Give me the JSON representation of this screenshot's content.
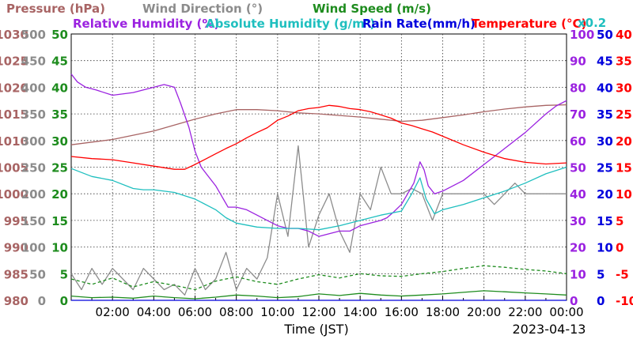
{
  "chart_data": {
    "type": "line",
    "date": "2023-04-13",
    "xlabel": "Time (JST)",
    "x_ticks": [
      "02:00",
      "04:00",
      "06:00",
      "08:00",
      "10:00",
      "12:00",
      "14:00",
      "16:00",
      "18:00",
      "20:00",
      "22:00",
      "00:00"
    ],
    "grid": true,
    "legend": [
      {
        "name": "Pressure (hPa)",
        "color": "#a86464"
      },
      {
        "name": "Wind Direction (°)",
        "color": "#8c8c8c"
      },
      {
        "name": "Wind Speed (m/s)",
        "color": "#1e8c1e"
      },
      {
        "name": "Relative Humidity (%)",
        "color": "#9b22e0"
      },
      {
        "name": "Absolute Humidity (g/m³)",
        "color": "#1fbfbf"
      },
      {
        "name": "Rain Rate(mm/h)",
        "color": "#0000dd"
      },
      {
        "name": "Temperature (°C)",
        "color": "#ff0000"
      }
    ],
    "abs_humidity_scale_note": "x0.2",
    "axes": {
      "pressure": {
        "ticks": [
          "980",
          "985",
          "990",
          "995",
          "1000",
          "1005",
          "1010",
          "1015",
          "1020",
          "1025",
          "1030"
        ],
        "ylim": [
          980,
          1030
        ],
        "color": "#a86464"
      },
      "wind_direction": {
        "ticks": [
          "0",
          "50",
          "100",
          "150",
          "200",
          "250",
          "300",
          "350",
          "400",
          "450",
          "500"
        ],
        "ylim": [
          0,
          500
        ],
        "color": "#8c8c8c"
      },
      "wind_speed": {
        "ticks": [
          "0",
          "5",
          "10",
          "15",
          "20",
          "25",
          "30",
          "35",
          "40",
          "45",
          "50"
        ],
        "ylim": [
          0,
          50
        ],
        "color": "#1e8c1e"
      },
      "relative_humidity": {
        "ticks": [
          "0",
          "10",
          "20",
          "30",
          "40",
          "50",
          "60",
          "70",
          "80",
          "90",
          "100"
        ],
        "ylim": [
          0,
          100
        ],
        "color": "#9b22e0"
      },
      "rain_rate": {
        "ticks": [
          "0",
          "5",
          "10",
          "15",
          "20",
          "25",
          "30",
          "35",
          "40",
          "45",
          "50"
        ],
        "ylim": [
          0,
          50
        ],
        "color": "#0000dd"
      },
      "temperature": {
        "ticks": [
          "-10",
          "-5",
          "0",
          "5",
          "10",
          "15",
          "20",
          "25",
          "30",
          "35",
          "40"
        ],
        "ylim": [
          -10,
          40
        ],
        "color": "#ff0000"
      }
    },
    "x_range_hours": [
      0,
      24
    ],
    "series": [
      {
        "name": "Pressure (hPa)",
        "axis": "pressure",
        "color": "#a86464",
        "x": [
          0,
          2,
          4,
          5,
          6,
          7,
          8,
          9,
          10,
          11,
          12,
          13,
          14,
          15,
          16,
          17,
          18,
          19,
          20,
          21,
          22,
          23,
          24
        ],
        "y": [
          1009.2,
          1010.2,
          1011.8,
          1012.9,
          1014.0,
          1015.0,
          1015.8,
          1015.8,
          1015.6,
          1015.2,
          1015.0,
          1014.7,
          1014.4,
          1014.0,
          1013.6,
          1013.8,
          1014.3,
          1014.8,
          1015.4,
          1015.9,
          1016.3,
          1016.6,
          1016.7
        ]
      },
      {
        "name": "Wind Direction (°)",
        "axis": "wind_direction",
        "color": "#8c8c8c",
        "x": [
          0,
          0.5,
          1,
          1.5,
          2,
          2.5,
          3,
          3.5,
          4,
          4.5,
          5,
          5.5,
          6,
          6.5,
          7,
          7.5,
          8,
          8.5,
          9,
          9.5,
          10,
          10.5,
          11,
          11.5,
          12,
          12.5,
          13,
          13.5,
          14,
          14.5,
          15,
          15.5,
          16,
          16.5,
          17,
          17.5,
          18,
          18.5,
          19,
          19.5,
          20,
          20.5,
          21,
          21.5,
          22,
          22.5,
          23,
          23.5,
          24
        ],
        "y": [
          50,
          20,
          60,
          30,
          60,
          40,
          20,
          60,
          40,
          20,
          30,
          10,
          60,
          20,
          40,
          90,
          20,
          60,
          40,
          80,
          200,
          120,
          290,
          100,
          160,
          200,
          130,
          90,
          200,
          170,
          250,
          200,
          200,
          210,
          200,
          150,
          200,
          200,
          200,
          200,
          200,
          180,
          200,
          220,
          200,
          200,
          200,
          200,
          200
        ]
      },
      {
        "name": "Wind Speed (m/s) avg",
        "axis": "wind_speed",
        "color": "#1e8c1e",
        "x": [
          0,
          1,
          2,
          3,
          4,
          5,
          6,
          7,
          8,
          9,
          10,
          11,
          12,
          13,
          14,
          15,
          16,
          17,
          18,
          19,
          20,
          21,
          22,
          23,
          24
        ],
        "y": [
          0.8,
          0.5,
          0.6,
          0.4,
          0.8,
          0.5,
          0.3,
          0.6,
          1.0,
          0.8,
          0.5,
          0.7,
          1.2,
          0.9,
          1.3,
          1.0,
          0.8,
          1.0,
          1.2,
          1.5,
          1.8,
          1.6,
          1.4,
          1.2,
          1.0
        ]
      },
      {
        "name": "Wind Speed (m/s) gust",
        "axis": "wind_speed",
        "color": "#1e8c1e",
        "dashed": true,
        "x": [
          0,
          1,
          2,
          3,
          4,
          5,
          6,
          7,
          8,
          9,
          10,
          11,
          12,
          13,
          14,
          15,
          16,
          17,
          18,
          19,
          20,
          21,
          22,
          23,
          24
        ],
        "y": [
          4.0,
          3.0,
          4.2,
          2.5,
          3.5,
          2.8,
          2.0,
          3.6,
          4.4,
          3.5,
          3.0,
          4.0,
          4.8,
          4.2,
          5.0,
          4.6,
          4.5,
          5.0,
          5.4,
          6.0,
          6.5,
          6.2,
          5.8,
          5.5,
          5.0
        ]
      },
      {
        "name": "Relative Humidity (%)",
        "axis": "relative_humidity",
        "color": "#9b22e0",
        "x": [
          0,
          0.3,
          0.7,
          1.2,
          2,
          3,
          4,
          4.5,
          5,
          5.3,
          5.7,
          6,
          6.3,
          6.6,
          7,
          7.3,
          7.6,
          8,
          8.5,
          9,
          9.5,
          10,
          10.5,
          11,
          11.5,
          12,
          12.5,
          13,
          13.5,
          14,
          14.5,
          15,
          15.3,
          15.6,
          16,
          16.3,
          16.6,
          16.9,
          17.1,
          17.3,
          17.6,
          18,
          19,
          20,
          21,
          22,
          23,
          23.5,
          24
        ],
        "y": [
          85,
          82,
          80,
          79,
          77,
          78,
          80,
          81,
          80,
          74,
          65,
          56,
          50,
          47,
          43,
          39,
          35,
          35,
          34,
          32,
          30,
          28,
          27,
          27,
          26,
          24,
          25,
          26,
          26,
          28,
          29,
          30,
          31,
          33,
          36,
          40,
          44,
          52,
          49,
          43,
          40,
          41,
          45,
          51,
          57,
          63,
          70,
          73,
          75
        ]
      },
      {
        "name": "Absolute Humidity (g/m³)",
        "axis": "relative_humidity",
        "color": "#1fbfbf",
        "x": [
          0,
          1,
          2,
          3,
          3.5,
          4,
          5,
          6,
          7,
          7.5,
          8,
          9,
          10,
          11,
          12,
          13,
          14,
          15,
          16,
          16.5,
          16.9,
          17.2,
          17.6,
          18,
          19,
          20,
          21,
          22,
          23,
          24
        ],
        "y": [
          49.5,
          46.5,
          45,
          42,
          41.5,
          41.5,
          40.5,
          38,
          34,
          31,
          29,
          27.5,
          27,
          27,
          26.5,
          28,
          30,
          32,
          33.5,
          40,
          46,
          38,
          32.5,
          34,
          36,
          38.5,
          41,
          44,
          47.5,
          50
        ]
      },
      {
        "name": "Rain Rate(mm/h)",
        "axis": "rain_rate",
        "color": "#0000dd",
        "x": [
          0,
          24
        ],
        "y": [
          0,
          0
        ]
      },
      {
        "name": "Temperature (°C)",
        "axis": "temperature",
        "color": "#ff0000",
        "x": [
          0,
          1,
          2,
          3,
          4,
          5,
          5.5,
          6,
          6.5,
          7,
          7.5,
          8,
          8.5,
          9,
          9.5,
          10,
          10.5,
          11,
          11.5,
          12,
          12.5,
          13,
          13.5,
          14,
          14.5,
          15,
          15.5,
          16,
          16.5,
          17,
          17.5,
          18,
          19,
          20,
          21,
          22,
          23,
          24
        ],
        "y": [
          17.0,
          16.6,
          16.4,
          15.8,
          15.2,
          14.6,
          14.6,
          15.5,
          16.5,
          17.5,
          18.5,
          19.4,
          20.5,
          21.5,
          22.4,
          23.8,
          24.6,
          25.6,
          26.0,
          26.2,
          26.6,
          26.4,
          26.0,
          25.8,
          25.4,
          24.8,
          24.2,
          23.3,
          22.8,
          22.2,
          21.6,
          20.8,
          19.2,
          17.8,
          16.6,
          15.9,
          15.6,
          15.8
        ]
      }
    ]
  }
}
